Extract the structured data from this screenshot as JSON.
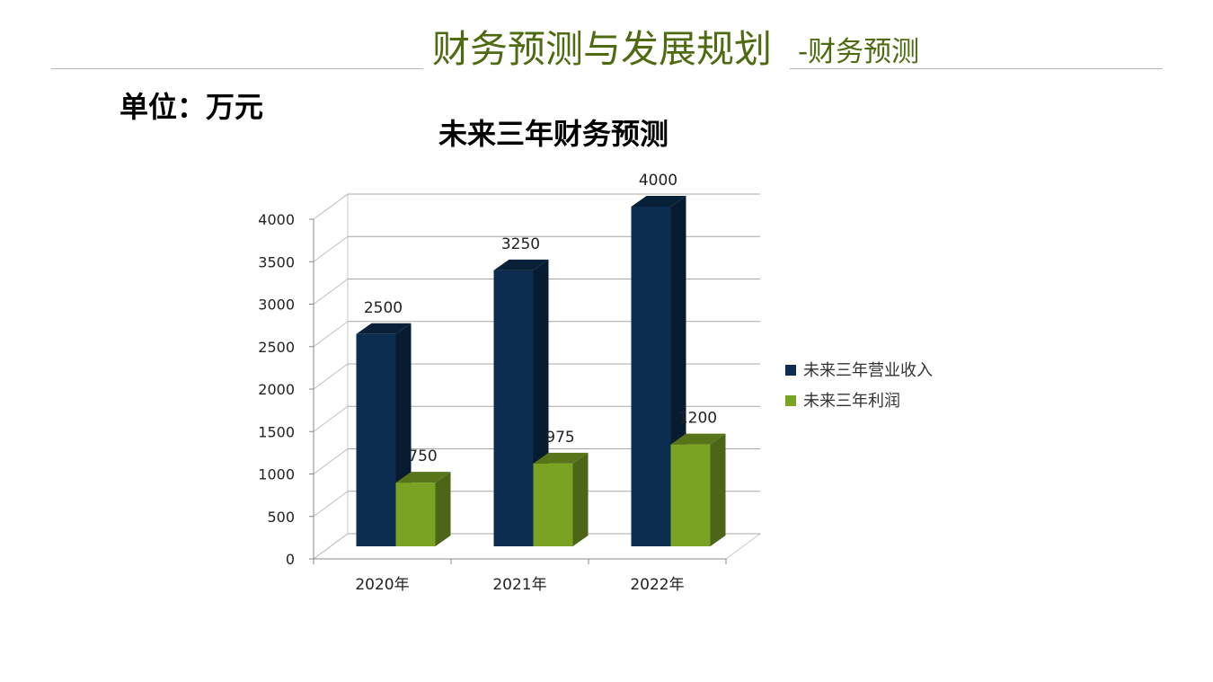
{
  "header": {
    "title": "财务预测与发展规划",
    "subtitle": "-财务预测"
  },
  "unit_label": "单位：万元",
  "chart_data": {
    "type": "bar",
    "title": "未来三年财务预测",
    "xlabel": "",
    "ylabel": "",
    "categories": [
      "2020年",
      "2021年",
      "2022年"
    ],
    "series": [
      {
        "name": "未来三年营业收入",
        "values": [
          2500,
          3250,
          4000
        ],
        "color": "#0c2d4f"
      },
      {
        "name": "未来三年利润",
        "values": [
          750,
          975,
          1200
        ],
        "color": "#7aa323"
      }
    ],
    "ylim": [
      0,
      4000
    ],
    "y_ticks": [
      "0",
      "500",
      "1000",
      "1500",
      "2000",
      "2500",
      "3000",
      "3500",
      "4000"
    ],
    "data_labels": true,
    "grid": true,
    "three_d": true,
    "legend_position": "right"
  }
}
